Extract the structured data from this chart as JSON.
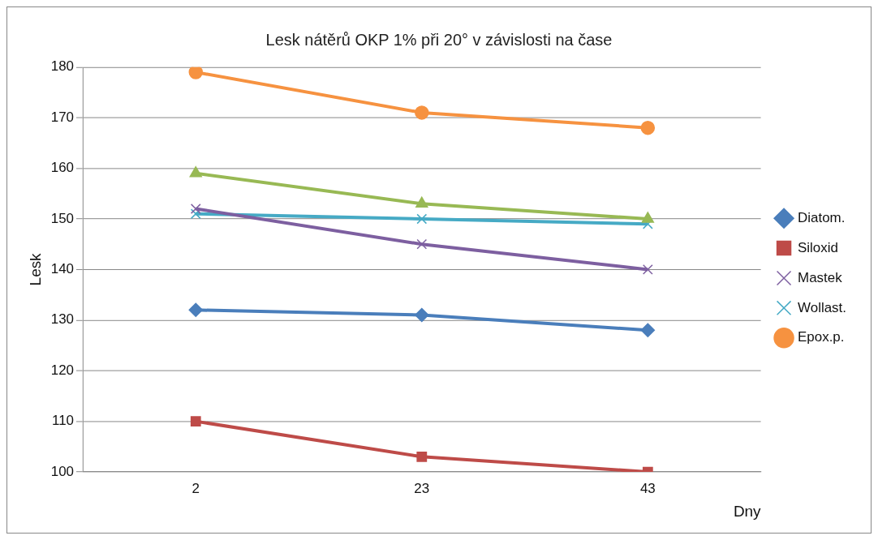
{
  "chart_data": {
    "type": "line",
    "title": "Lesk nátěrů OKP 1% při 20° v závislosti na čase",
    "xlabel": "Dny",
    "ylabel": "Lesk",
    "categories": [
      "2",
      "23",
      "43"
    ],
    "series": [
      {
        "name": "Diatom.",
        "color": "#4a7ebb",
        "marker": "diamond",
        "values": [
          132,
          131,
          128
        ]
      },
      {
        "name": "Siloxid",
        "color": "#be4b48",
        "marker": "square",
        "values": [
          110,
          103,
          100
        ]
      },
      {
        "color": "#98b954",
        "marker": "triangle",
        "values": [
          159,
          153,
          150
        ]
      },
      {
        "name": "Mastek",
        "color": "#7d5fa0",
        "marker": "cross",
        "values": [
          152,
          145,
          140
        ]
      },
      {
        "name": "Wollast.",
        "color": "#46aac5",
        "marker": "cross",
        "values": [
          151,
          150,
          149
        ]
      },
      {
        "name": "Epox.p.",
        "color": "#f69240",
        "marker": "circle",
        "values": [
          179,
          171,
          168
        ]
      }
    ],
    "ylim": [
      100,
      180
    ],
    "yticks": [
      100,
      110,
      120,
      130,
      140,
      150,
      160,
      170,
      180
    ],
    "grid": "y",
    "legend": "right"
  }
}
